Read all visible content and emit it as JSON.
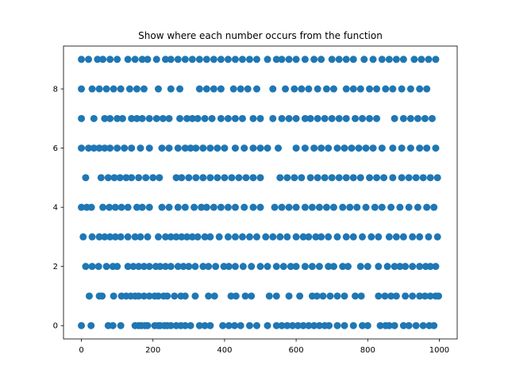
{
  "chart_data": {
    "type": "scatter",
    "title": "Show where each number occurs from the function",
    "xlabel": "",
    "ylabel": "",
    "xlim": [
      -50,
      1050
    ],
    "ylim": [
      -0.45,
      9.45
    ],
    "x_ticks": [
      0,
      200,
      400,
      600,
      800,
      1000
    ],
    "y_ticks": [
      0,
      2,
      4,
      6,
      8
    ],
    "x_tick_labels": [
      "0",
      "200",
      "400",
      "600",
      "800",
      "1000"
    ],
    "y_tick_labels": [
      "0",
      "2",
      "4",
      "6",
      "8"
    ],
    "grid": false,
    "marker_color": "#1f77b4",
    "series": [
      {
        "x": [
          0,
          27,
          75,
          88,
          110,
          150,
          160,
          168,
          178,
          185,
          205,
          215,
          220,
          232,
          240,
          250,
          265,
          278,
          290,
          305,
          330,
          345,
          360,
          395,
          412,
          428,
          445,
          470,
          490,
          520,
          545,
          560,
          575,
          590,
          605,
          620,
          635,
          650,
          665,
          680,
          692,
          715,
          735,
          760,
          785,
          800,
          835,
          850,
          860,
          875,
          900,
          915,
          935,
          955,
          972,
          985
        ],
        "y": [
          0,
          0,
          0,
          0,
          0,
          0,
          0,
          0,
          0,
          0,
          0,
          0,
          0,
          0,
          0,
          0,
          0,
          0,
          0,
          0,
          0,
          0,
          0,
          0,
          0,
          0,
          0,
          0,
          0,
          0,
          0,
          0,
          0,
          0,
          0,
          0,
          0,
          0,
          0,
          0,
          0,
          0,
          0,
          0,
          0,
          0,
          0,
          0,
          0,
          0,
          0,
          0,
          0,
          0,
          0,
          0
        ]
      },
      {
        "x": [
          22,
          50,
          58,
          90,
          112,
          125,
          138,
          150,
          160,
          175,
          190,
          205,
          215,
          230,
          240,
          260,
          278,
          290,
          318,
          355,
          372,
          418,
          432,
          458,
          475,
          525,
          545,
          580,
          610,
          645,
          658,
          675,
          695,
          715,
          735,
          765,
          782,
          830,
          848,
          865,
          880,
          905,
          925,
          945,
          960,
          975,
          990,
          998
        ],
        "y": [
          1,
          1,
          1,
          1,
          1,
          1,
          1,
          1,
          1,
          1,
          1,
          1,
          1,
          1,
          1,
          1,
          1,
          1,
          1,
          1,
          1,
          1,
          1,
          1,
          1,
          1,
          1,
          1,
          1,
          1,
          1,
          1,
          1,
          1,
          1,
          1,
          1,
          1,
          1,
          1,
          1,
          1,
          1,
          1,
          1,
          1,
          1,
          1
        ]
      },
      {
        "x": [
          12,
          30,
          48,
          70,
          88,
          100,
          130,
          145,
          160,
          175,
          190,
          208,
          220,
          235,
          250,
          270,
          285,
          300,
          318,
          340,
          355,
          375,
          398,
          412,
          430,
          452,
          475,
          500,
          520,
          545,
          565,
          585,
          600,
          625,
          645,
          665,
          690,
          705,
          730,
          745,
          780,
          800,
          830,
          855,
          875,
          890,
          905,
          925,
          945,
          962,
          975,
          990
        ],
        "y": [
          2,
          2,
          2,
          2,
          2,
          2,
          2,
          2,
          2,
          2,
          2,
          2,
          2,
          2,
          2,
          2,
          2,
          2,
          2,
          2,
          2,
          2,
          2,
          2,
          2,
          2,
          2,
          2,
          2,
          2,
          2,
          2,
          2,
          2,
          2,
          2,
          2,
          2,
          2,
          2,
          2,
          2,
          2,
          2,
          2,
          2,
          2,
          2,
          2,
          2,
          2,
          2
        ]
      },
      {
        "x": [
          5,
          30,
          50,
          65,
          80,
          95,
          110,
          130,
          150,
          165,
          185,
          215,
          235,
          250,
          265,
          280,
          295,
          310,
          325,
          345,
          360,
          385,
          410,
          430,
          450,
          470,
          490,
          515,
          535,
          555,
          575,
          600,
          620,
          635,
          655,
          670,
          690,
          715,
          740,
          760,
          785,
          810,
          830,
          860,
          880,
          900,
          925,
          945,
          970,
          995
        ],
        "y": [
          3,
          3,
          3,
          3,
          3,
          3,
          3,
          3,
          3,
          3,
          3,
          3,
          3,
          3,
          3,
          3,
          3,
          3,
          3,
          3,
          3,
          3,
          3,
          3,
          3,
          3,
          3,
          3,
          3,
          3,
          3,
          3,
          3,
          3,
          3,
          3,
          3,
          3,
          3,
          3,
          3,
          3,
          3,
          3,
          3,
          3,
          3,
          3,
          3,
          3
        ]
      },
      {
        "x": [
          0,
          15,
          28,
          60,
          78,
          95,
          112,
          130,
          155,
          170,
          190,
          225,
          245,
          270,
          290,
          315,
          335,
          350,
          370,
          390,
          410,
          430,
          455,
          480,
          500,
          540,
          560,
          580,
          600,
          625,
          645,
          665,
          685,
          705,
          730,
          750,
          770,
          795,
          820,
          840,
          865,
          890,
          915,
          940,
          965,
          985
        ],
        "y": [
          4,
          4,
          4,
          4,
          4,
          4,
          4,
          4,
          4,
          4,
          4,
          4,
          4,
          4,
          4,
          4,
          4,
          4,
          4,
          4,
          4,
          4,
          4,
          4,
          4,
          4,
          4,
          4,
          4,
          4,
          4,
          4,
          4,
          4,
          4,
          4,
          4,
          4,
          4,
          4,
          4,
          4,
          4,
          4,
          4,
          4
        ]
      },
      {
        "x": [
          12,
          55,
          75,
          92,
          108,
          125,
          140,
          160,
          180,
          200,
          218,
          265,
          280,
          300,
          320,
          340,
          360,
          380,
          400,
          420,
          440,
          460,
          480,
          500,
          555,
          575,
          595,
          615,
          640,
          660,
          680,
          700,
          720,
          740,
          760,
          780,
          805,
          825,
          845,
          870,
          895,
          915,
          935,
          955,
          975,
          995
        ],
        "y": [
          5,
          5,
          5,
          5,
          5,
          5,
          5,
          5,
          5,
          5,
          5,
          5,
          5,
          5,
          5,
          5,
          5,
          5,
          5,
          5,
          5,
          5,
          5,
          5,
          5,
          5,
          5,
          5,
          5,
          5,
          5,
          5,
          5,
          5,
          5,
          5,
          5,
          5,
          5,
          5,
          5,
          5,
          5,
          5,
          5,
          5
        ]
      },
      {
        "x": [
          0,
          20,
          35,
          50,
          65,
          80,
          100,
          120,
          140,
          165,
          190,
          225,
          245,
          270,
          290,
          305,
          320,
          340,
          360,
          380,
          400,
          430,
          455,
          480,
          500,
          520,
          550,
          600,
          625,
          650,
          670,
          690,
          715,
          735,
          755,
          775,
          795,
          815,
          840,
          870,
          895,
          920,
          945,
          965,
          990
        ],
        "y": [
          6,
          6,
          6,
          6,
          6,
          6,
          6,
          6,
          6,
          6,
          6,
          6,
          6,
          6,
          6,
          6,
          6,
          6,
          6,
          6,
          6,
          6,
          6,
          6,
          6,
          6,
          6,
          6,
          6,
          6,
          6,
          6,
          6,
          6,
          6,
          6,
          6,
          6,
          6,
          6,
          6,
          6,
          6,
          6,
          6
        ]
      },
      {
        "x": [
          0,
          35,
          65,
          80,
          100,
          115,
          140,
          155,
          170,
          190,
          210,
          228,
          245,
          275,
          295,
          310,
          325,
          345,
          365,
          390,
          410,
          430,
          450,
          480,
          500,
          535,
          560,
          580,
          600,
          625,
          640,
          660,
          680,
          700,
          720,
          740,
          765,
          785,
          805,
          825,
          875,
          900,
          920,
          940,
          960,
          980
        ],
        "y": [
          7,
          7,
          7,
          7,
          7,
          7,
          7,
          7,
          7,
          7,
          7,
          7,
          7,
          7,
          7,
          7,
          7,
          7,
          7,
          7,
          7,
          7,
          7,
          7,
          7,
          7,
          7,
          7,
          7,
          7,
          7,
          7,
          7,
          7,
          7,
          7,
          7,
          7,
          7,
          7,
          7,
          7,
          7,
          7,
          7,
          7
        ]
      },
      {
        "x": [
          0,
          30,
          50,
          70,
          90,
          110,
          135,
          155,
          175,
          215,
          250,
          275,
          330,
          350,
          370,
          390,
          425,
          445,
          465,
          490,
          535,
          570,
          595,
          615,
          635,
          660,
          685,
          705,
          740,
          760,
          780,
          805,
          825,
          850,
          870,
          895,
          920,
          945,
          965
        ],
        "y": [
          8,
          8,
          8,
          8,
          8,
          8,
          8,
          8,
          8,
          8,
          8,
          8,
          8,
          8,
          8,
          8,
          8,
          8,
          8,
          8,
          8,
          8,
          8,
          8,
          8,
          8,
          8,
          8,
          8,
          8,
          8,
          8,
          8,
          8,
          8,
          8,
          8,
          8,
          8
        ]
      },
      {
        "x": [
          0,
          20,
          45,
          60,
          80,
          100,
          130,
          150,
          170,
          185,
          210,
          235,
          250,
          270,
          290,
          310,
          330,
          350,
          370,
          390,
          410,
          430,
          450,
          470,
          490,
          520,
          545,
          560,
          580,
          600,
          625,
          650,
          670,
          700,
          720,
          740,
          760,
          790,
          815,
          840,
          860,
          880,
          900,
          930,
          950,
          970,
          990
        ],
        "y": [
          9,
          9,
          9,
          9,
          9,
          9,
          9,
          9,
          9,
          9,
          9,
          9,
          9,
          9,
          9,
          9,
          9,
          9,
          9,
          9,
          9,
          9,
          9,
          9,
          9,
          9,
          9,
          9,
          9,
          9,
          9,
          9,
          9,
          9,
          9,
          9,
          9,
          9,
          9,
          9,
          9,
          9,
          9,
          9,
          9,
          9,
          9
        ]
      }
    ]
  }
}
